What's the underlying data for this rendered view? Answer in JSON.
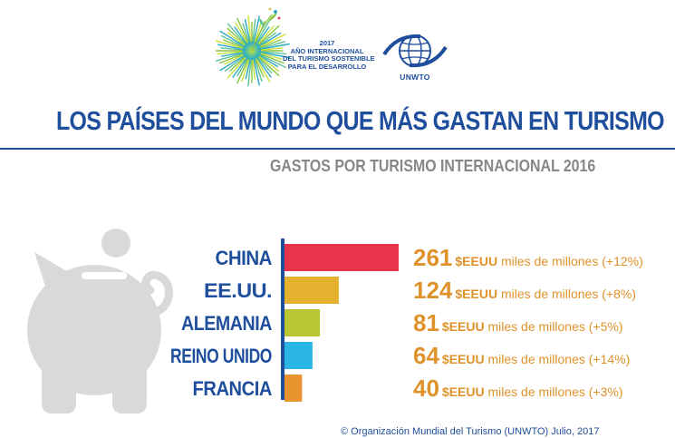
{
  "logos": {
    "iy_lines": [
      "2017",
      "AÑO INTERNACIONAL",
      "DEL TURISMO SOSTENIBLE",
      "PARA EL DESARROLLO"
    ],
    "unwto_label": "UNWTO"
  },
  "title": "LOS PAÍSES DEL MUNDO QUE MÁS GASTAN EN TURISMO",
  "subtitle": "GASTOS POR TURISMO INTERNACIONAL 2016",
  "footer": "© Organización Mundial del Turismo (UNWTO) Julio, 2017",
  "colors": {
    "brand_blue": "#1f4e9c",
    "accent_orange": "#e0922a",
    "subtitle_gray": "#878787",
    "piggy_gray": "#d9d9d9"
  },
  "chart_data": {
    "type": "bar",
    "orientation": "horizontal",
    "categories": [
      "CHINA",
      "EE.UU.",
      "ALEMANIA",
      "REINO UNIDO",
      "FRANCIA"
    ],
    "values": [
      261,
      124,
      81,
      64,
      40
    ],
    "unit": "$EEUU",
    "value_suffix": " miles de millones",
    "changes": [
      "(+12%)",
      "(+8%)",
      "(+5%)",
      "(+14%)",
      "(+3%)"
    ],
    "bar_colors": [
      "#e8344a",
      "#e3b12e",
      "#b9c532",
      "#29b6e4",
      "#e8932d"
    ],
    "title": "GASTOS POR TURISMO INTERNACIONAL 2016",
    "xlim": [
      0,
      261
    ],
    "grid": false
  }
}
